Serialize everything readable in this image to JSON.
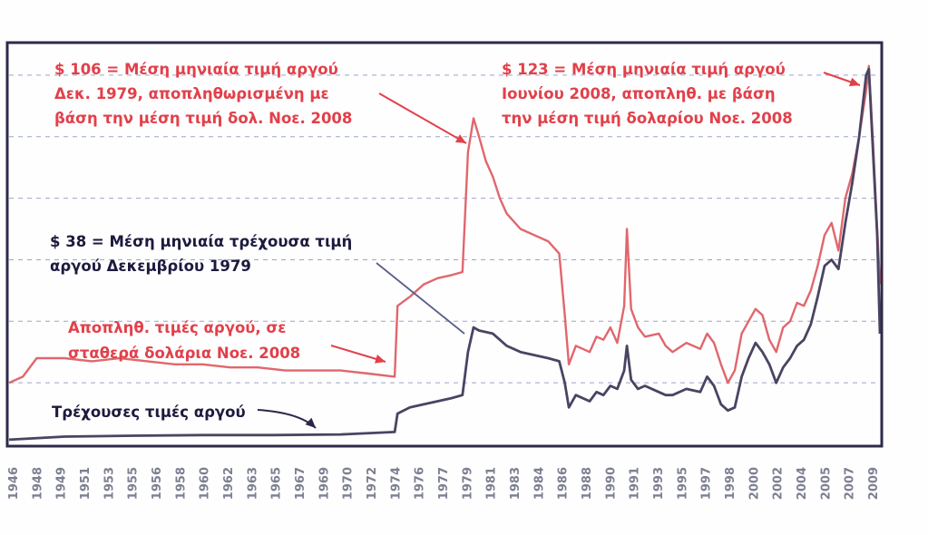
{
  "chart_data": {
    "type": "line",
    "title": "",
    "xlabel": "",
    "ylabel": "",
    "x_range": [
      1946,
      2009
    ],
    "ylim": [
      0,
      130
    ],
    "grid": {
      "horizontal": true,
      "style": "dashed"
    },
    "tick_labels": [
      "1946",
      "1948",
      "1949",
      "1951",
      "1953",
      "1955",
      "1956",
      "1958",
      "1960",
      "1962",
      "1963",
      "1965",
      "1967",
      "1969",
      "1970",
      "1972",
      "1974",
      "1976",
      "1977",
      "1979",
      "1981",
      "1983",
      "1984",
      "1986",
      "1988",
      "1990",
      "1991",
      "1993",
      "1995",
      "1997",
      "1998",
      "2000",
      "2002",
      "2004",
      "2005",
      "2007",
      "2009"
    ],
    "series": [
      {
        "name": "Αποπληθ. τιμές αργού, σε σταθερά δολάρια Νοε. 2008",
        "color": "#e0676d",
        "x": [
          1946,
          1947,
          1948,
          1950,
          1952,
          1954,
          1956,
          1958,
          1960,
          1962,
          1964,
          1966,
          1968,
          1970,
          1972,
          1973.9,
          1974.1,
          1975,
          1976,
          1977,
          1978,
          1978.8,
          1979.2,
          1979.6,
          1980,
          1980.5,
          1981,
          1981.5,
          1982,
          1983,
          1984,
          1985,
          1985.8,
          1986.2,
          1986.5,
          1987,
          1988,
          1988.5,
          1989,
          1989.5,
          1990,
          1990.5,
          1990.7,
          1991,
          1991.5,
          1992,
          1993,
          1993.5,
          1994,
          1995,
          1996,
          1996.5,
          1997,
          1997.5,
          1998,
          1998.5,
          1999,
          1999.5,
          2000,
          2000.5,
          2001,
          2001.5,
          2002,
          2002.5,
          2003,
          2003.5,
          2004,
          2004.5,
          2005,
          2005.5,
          2006,
          2006.5,
          2007,
          2007.5,
          2008,
          2008.2,
          2008.5,
          2008.8,
          2009
        ],
        "values": [
          20,
          22,
          28,
          28,
          27,
          28,
          27,
          26,
          26,
          25,
          25,
          24,
          24,
          24,
          23,
          22,
          45,
          48,
          52,
          54,
          55,
          56,
          95,
          106,
          100,
          92,
          87,
          80,
          75,
          70,
          68,
          66,
          62,
          42,
          26,
          32,
          30,
          35,
          34,
          38,
          33,
          45,
          70,
          44,
          38,
          35,
          36,
          32,
          30,
          33,
          31,
          36,
          33,
          26,
          20,
          24,
          36,
          40,
          44,
          42,
          34,
          30,
          38,
          40,
          46,
          45,
          50,
          58,
          68,
          72,
          63,
          80,
          88,
          100,
          115,
          123,
          98,
          70,
          52
        ]
      },
      {
        "name": "Τρέχουσες τιμές αργού",
        "color": "#4a4463",
        "x": [
          1946,
          1950,
          1955,
          1960,
          1965,
          1970,
          1973.9,
          1974.1,
          1975,
          1976,
          1977,
          1978,
          1978.8,
          1979.2,
          1979.6,
          1980,
          1981,
          1981.5,
          1982,
          1983,
          1984,
          1985,
          1985.8,
          1986.2,
          1986.5,
          1987,
          1988,
          1988.5,
          1989,
          1989.5,
          1990,
          1990.5,
          1990.7,
          1991,
          1991.5,
          1992,
          1993,
          1993.5,
          1994,
          1995,
          1996,
          1996.5,
          1997,
          1997.5,
          1998,
          1998.5,
          1999,
          1999.5,
          2000,
          2000.5,
          2001,
          2001.5,
          2002,
          2002.5,
          2003,
          2003.5,
          2004,
          2004.5,
          2005,
          2005.5,
          2006,
          2006.5,
          2007,
          2007.5,
          2008,
          2008.2,
          2008.5,
          2008.8,
          2009
        ],
        "values": [
          1.5,
          2.5,
          2.8,
          3,
          3,
          3.2,
          4,
          10,
          12,
          13,
          14,
          15,
          16,
          30,
          38,
          37,
          36,
          34,
          32,
          30,
          29,
          28,
          27,
          20,
          12,
          16,
          14,
          17,
          16,
          19,
          18,
          24,
          32,
          21,
          18,
          19,
          17,
          16,
          16,
          18,
          17,
          22,
          19,
          13,
          11,
          12,
          22,
          28,
          33,
          30,
          26,
          20,
          25,
          28,
          32,
          34,
          39,
          48,
          58,
          60,
          57,
          72,
          85,
          100,
          120,
          122,
          95,
          68,
          36
        ]
      }
    ],
    "annotations": [
      {
        "lines": [
          "$ 106 = Μέση μηνιαία τιμή αργού",
          "Δεκ. 1979, αποπληθωρισμένη με",
          "βάση την μέση τιμή δολ. Νοε. 2008"
        ],
        "color": "#e2404a"
      },
      {
        "lines": [
          "$ 123 = Μέση μηνιαία τιμή αργού",
          "Ιουνίου 2008, αποπληθ. με βάση",
          "την μέση τιμή δολαρίου Νοε. 2008"
        ],
        "color": "#e2404a"
      },
      {
        "lines": [
          "$ 38 = Μέση μηνιαία τρέχουσα τιμή",
          "αργού Δεκεμβρίου 1979"
        ],
        "color": "#1c1a3e"
      },
      {
        "lines": [
          "Αποπληθ. τιμές αργού, σε",
          "σταθερά δολάρια Νοε. 2008"
        ],
        "color": "#e2404a"
      },
      {
        "lines": [
          "Τρέχουσες τιμές αργού"
        ],
        "color": "#1c1a3e"
      }
    ]
  }
}
